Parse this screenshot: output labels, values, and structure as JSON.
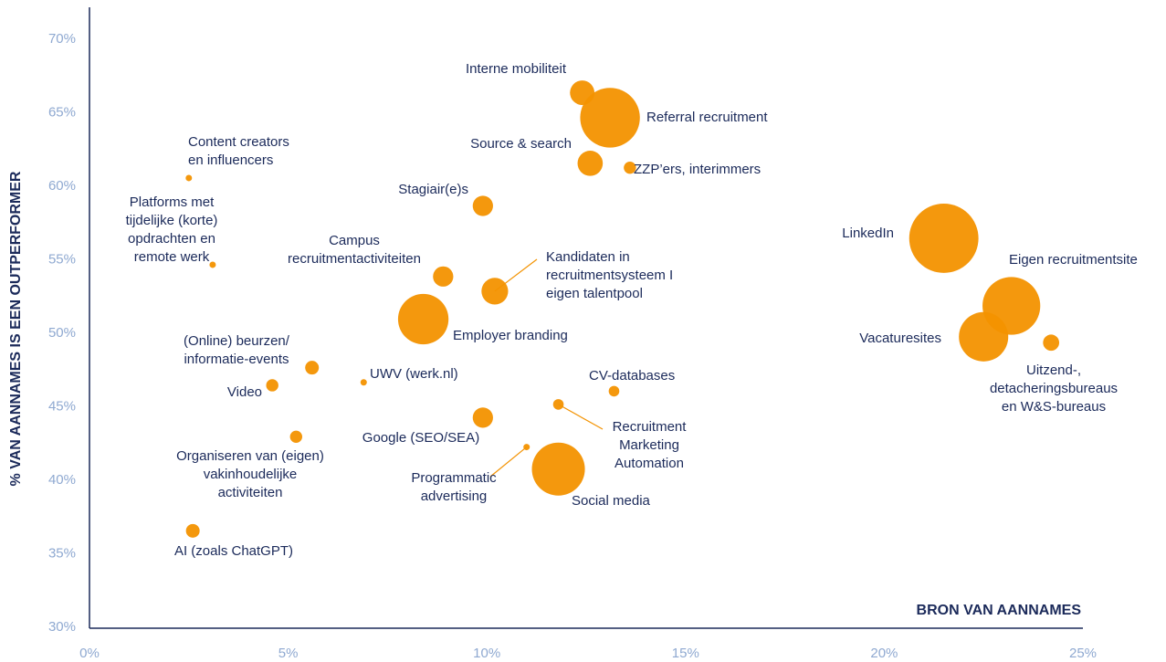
{
  "chart_data": {
    "type": "scatter",
    "xlabel": "BRON VAN AANNAMES",
    "ylabel": "% VAN AANNAMES IS EEN OUTPERFORMER",
    "xlim": [
      0,
      25
    ],
    "ylim": [
      30,
      72
    ],
    "x_ticks": [
      {
        "value": 0,
        "label": "0%"
      },
      {
        "value": 5,
        "label": "5%"
      },
      {
        "value": 10,
        "label": "10%"
      },
      {
        "value": 15,
        "label": "15%"
      },
      {
        "value": 20,
        "label": "20%"
      },
      {
        "value": 25,
        "label": "25%"
      }
    ],
    "y_ticks": [
      {
        "value": 30,
        "label": "30%"
      },
      {
        "value": 35,
        "label": "35%"
      },
      {
        "value": 40,
        "label": "40%"
      },
      {
        "value": 45,
        "label": "45%"
      },
      {
        "value": 50,
        "label": "50%"
      },
      {
        "value": 55,
        "label": "55%"
      },
      {
        "value": 60,
        "label": "60%"
      },
      {
        "value": 65,
        "label": "65%"
      },
      {
        "value": 70,
        "label": "70%"
      }
    ],
    "color": "#f39200",
    "points": [
      {
        "label": [
          "Interne mobiliteit"
        ],
        "x": 12.4,
        "y": 66.3,
        "size": 1.6
      },
      {
        "label": [
          "Referral recruitment"
        ],
        "x": 13.1,
        "y": 64.6,
        "size": 9.5
      },
      {
        "label": [
          "Source & search"
        ],
        "x": 12.6,
        "y": 61.5,
        "size": 1.7
      },
      {
        "label": [
          "ZZP’ers, interimmers"
        ],
        "x": 13.6,
        "y": 61.2,
        "size": 0.4
      },
      {
        "label": [
          "Content creators",
          "en influencers"
        ],
        "x": 2.5,
        "y": 60.5,
        "size": 0.1
      },
      {
        "label": [
          "Stagiair(e)s"
        ],
        "x": 9.9,
        "y": 58.6,
        "size": 1.1
      },
      {
        "label": [
          "Platforms met",
          "tijdelijke (korte)",
          "opdrachten en",
          "remote werk"
        ],
        "x": 3.1,
        "y": 54.6,
        "size": 0.0
      },
      {
        "label": [
          "Campus",
          "recruitmentactiviteiten"
        ],
        "x": 8.9,
        "y": 53.8,
        "size": 1.1
      },
      {
        "label": [
          "Kandidaten in",
          "recruitmentsysteem I",
          "eigen talentpool"
        ],
        "x": 10.2,
        "y": 52.8,
        "size": 1.9
      },
      {
        "label": [
          "Employer branding"
        ],
        "x": 8.4,
        "y": 50.9,
        "size": 6.8
      },
      {
        "label": [
          "LinkedIn"
        ],
        "x": 21.5,
        "y": 56.4,
        "size": 12.8
      },
      {
        "label": [
          "Eigen recruitmentsite"
        ],
        "x": 23.2,
        "y": 51.8,
        "size": 8.9
      },
      {
        "label": [
          "Vacaturesites"
        ],
        "x": 22.5,
        "y": 49.7,
        "size": 6.5
      },
      {
        "label": [
          "Uitzend-,",
          "detacheringsbureaus",
          "en W&S-bureaus"
        ],
        "x": 24.2,
        "y": 49.3,
        "size": 0.7
      },
      {
        "label": [
          "(Online) beurzen/",
          "informatie-events"
        ],
        "x": 5.6,
        "y": 47.6,
        "size": 0.5
      },
      {
        "label": [
          "UWV (werk.nl)"
        ],
        "x": 6.9,
        "y": 46.6,
        "size": 0.1
      },
      {
        "label": [
          "Video"
        ],
        "x": 4.6,
        "y": 46.4,
        "size": 0.4
      },
      {
        "label": [
          "CV-databases"
        ],
        "x": 13.2,
        "y": 46.0,
        "size": 0.3
      },
      {
        "label": [
          "Recruitment",
          "Marketing",
          "Automation"
        ],
        "x": 11.8,
        "y": 45.1,
        "size": 0.3
      },
      {
        "label": [
          "Google (SEO/SEA)"
        ],
        "x": 9.9,
        "y": 44.2,
        "size": 1.1
      },
      {
        "label": [
          "Organiseren van (eigen)",
          "vakinhoudelijke",
          "activiteiten"
        ],
        "x": 5.2,
        "y": 42.9,
        "size": 0.4
      },
      {
        "label": [
          "Programmatic",
          "advertising"
        ],
        "x": 11.0,
        "y": 42.2,
        "size": 0.1
      },
      {
        "label": [
          "Social media"
        ],
        "x": 11.8,
        "y": 40.7,
        "size": 7.5
      },
      {
        "label": [
          "AI (zoals ChatGPT)"
        ],
        "x": 2.6,
        "y": 36.5,
        "size": 0.5
      }
    ]
  }
}
